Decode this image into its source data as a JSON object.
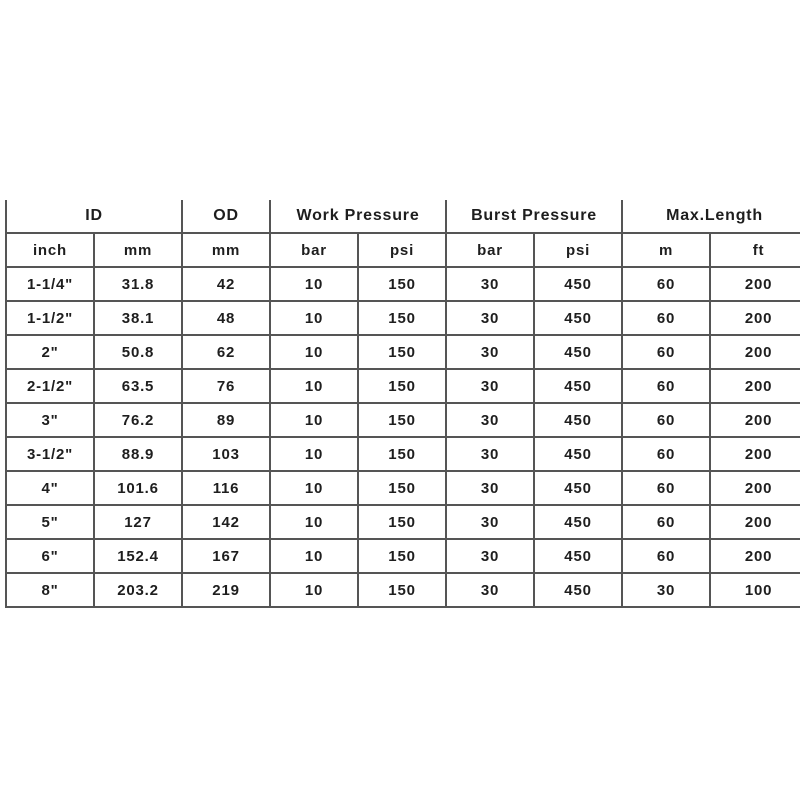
{
  "header": {
    "groups": [
      "ID",
      "OD",
      "Work Pressure",
      "Burst Pressure",
      "Max.Length"
    ],
    "units": [
      "inch",
      "mm",
      "mm",
      "bar",
      "psi",
      "bar",
      "psi",
      "m",
      "ft"
    ]
  },
  "rows": [
    [
      "1-1/4\"",
      "31.8",
      "42",
      "10",
      "150",
      "30",
      "450",
      "60",
      "200"
    ],
    [
      "1-1/2\"",
      "38.1",
      "48",
      "10",
      "150",
      "30",
      "450",
      "60",
      "200"
    ],
    [
      "2\"",
      "50.8",
      "62",
      "10",
      "150",
      "30",
      "450",
      "60",
      "200"
    ],
    [
      "2-1/2\"",
      "63.5",
      "76",
      "10",
      "150",
      "30",
      "450",
      "60",
      "200"
    ],
    [
      "3\"",
      "76.2",
      "89",
      "10",
      "150",
      "30",
      "450",
      "60",
      "200"
    ],
    [
      "3-1/2\"",
      "88.9",
      "103",
      "10",
      "150",
      "30",
      "450",
      "60",
      "200"
    ],
    [
      "4\"",
      "101.6",
      "116",
      "10",
      "150",
      "30",
      "450",
      "60",
      "200"
    ],
    [
      "5\"",
      "127",
      "142",
      "10",
      "150",
      "30",
      "450",
      "60",
      "200"
    ],
    [
      "6\"",
      "152.4",
      "167",
      "10",
      "150",
      "30",
      "450",
      "60",
      "200"
    ],
    [
      "8\"",
      "203.2",
      "219",
      "10",
      "150",
      "30",
      "450",
      "30",
      "100"
    ]
  ]
}
